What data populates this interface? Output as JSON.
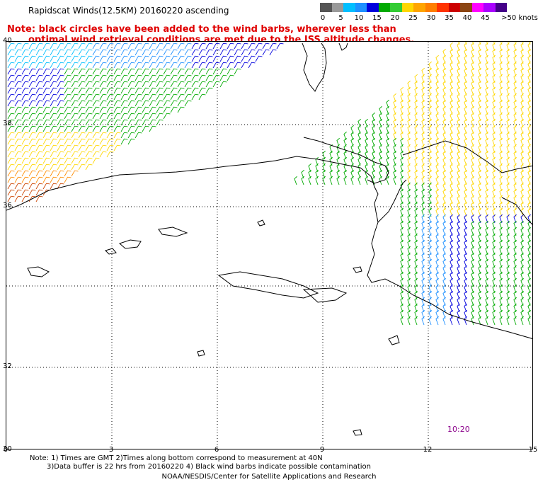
{
  "header": {
    "title": "Rapidscat Winds(12.5KM) 20160220 ascending"
  },
  "note": {
    "line1": "Note: black circles have been added to the wind barbs, wherever less than",
    "line2": "optimal wind retrieval conditions are met due to the ISS altitude changes."
  },
  "scale": {
    "unit": "knots",
    "labels": [
      "0",
      "5",
      "10",
      "15",
      "20",
      "25",
      "30",
      "35",
      "40",
      "45",
      ">50 knots"
    ],
    "colors": [
      "#555555",
      "#999999",
      "#00bfff",
      "#1e90ff",
      "#0000dd",
      "#00aa00",
      "#33cc33",
      "#ffd700",
      "#ffa500",
      "#ff7f00",
      "#ff3300",
      "#cc0000",
      "#8b4513",
      "#ff00ff",
      "#aa00ff",
      "#440088"
    ]
  },
  "map": {
    "lat_labels": [
      "40",
      "38",
      "36",
      "32",
      "30"
    ],
    "lon_labels": [
      "0",
      "3",
      "6",
      "9",
      "12",
      "15"
    ],
    "time_label": "10:20",
    "wind_colors": {
      "calm": "#00bfff",
      "light": "#1e90ff",
      "moderate": "#0000dd",
      "fresh": "#00aa00",
      "strong": "#ffd700",
      "gale": "#ff8c00",
      "storm": "#cc4400"
    },
    "coastline_color": "#000000",
    "grid": "dotted"
  },
  "footer": {
    "note_line1": "Note: 1) Times are GMT 2)Times along bottom correspond to measurement at 40N",
    "note_line2": "3)Data buffer is 22 hrs from 20160220 4) Black wind barbs indicate possible contamination",
    "credit": "NOAA/NESDIS/Center for Satellite Applications and Research"
  }
}
